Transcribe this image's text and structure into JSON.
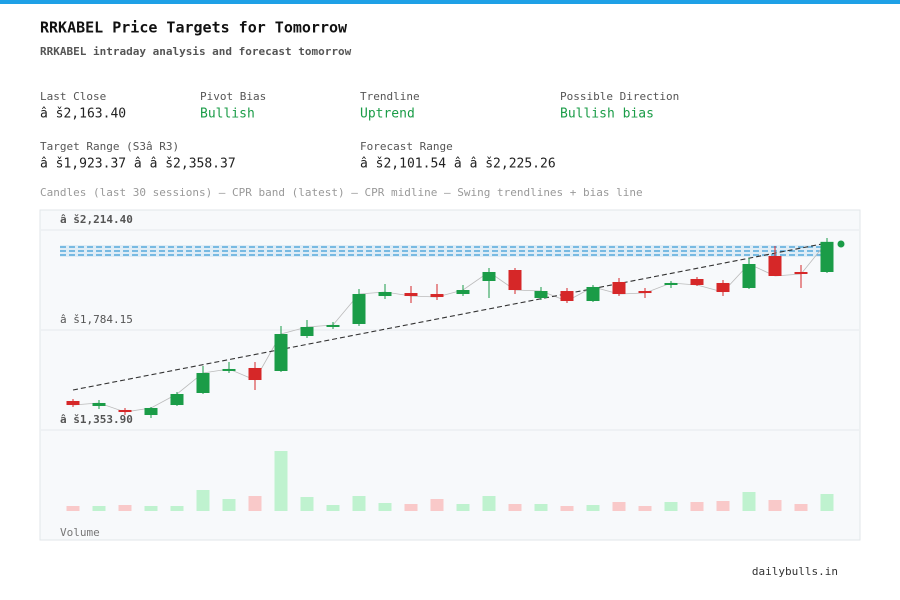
{
  "header": {
    "title": "RRKABEL Price Targets for Tomorrow",
    "subtitle": "RRKABEL intraday analysis and forecast tomorrow"
  },
  "stats": [
    {
      "label": "Last Close",
      "value": "â š2,163.40"
    },
    {
      "label": "Pivot Bias",
      "value": "Bullish"
    },
    {
      "label": "Trendline",
      "value": "Uptrend"
    },
    {
      "label": "Possible Direction",
      "value": "Bullish bias"
    },
    {
      "label": "Target Range (S3â  R3)",
      "value": "â š1,923.37 â   â š2,358.37"
    },
    {
      "label": "Forecast Range",
      "value": "â š2,101.54 â   â š2,225.26"
    }
  ],
  "chart_data": {
    "type": "candlestick",
    "caption": "Candles (last 30 sessions) – CPR band (latest) – CPR midline – Swing trendlines + bias line",
    "ylim": [
      1353.9,
      2214.4
    ],
    "yticks": [
      {
        "value": 2214.4,
        "label": "â š2,214.40"
      },
      {
        "value": 1784.15,
        "label": "â š1,784.15"
      },
      {
        "value": 1353.9,
        "label": "â š1,353.90"
      }
    ],
    "open": [
      1478.7,
      1457.2,
      1440.0,
      1418.4,
      1461.4,
      1513.1,
      1607.8,
      1620.7,
      1607.8,
      1758.3,
      1797.1,
      1810.0,
      1930.4,
      1943.3,
      1939.0,
      1939.0,
      1995.0,
      2042.3,
      1921.8,
      1951.9,
      1908.9,
      1990.7,
      1951.9,
      1977.8,
      2003.6,
      1986.4,
      1964.9,
      2102.5,
      2033.7,
      2033.7
    ],
    "close": [
      1461.4,
      1470.1,
      1431.3,
      1448.6,
      1508.8,
      1599.2,
      1616.4,
      1569.0,
      1766.9,
      1797.1,
      1805.7,
      1939.0,
      1947.6,
      1930.4,
      1926.1,
      1956.2,
      2033.7,
      1956.2,
      1951.9,
      1908.9,
      1969.2,
      1939.0,
      1943.3,
      1986.4,
      1977.8,
      1947.6,
      2068.1,
      2016.5,
      2025.1,
      2163.4
    ],
    "high": [
      1487.3,
      1483.0,
      1448.6,
      1452.9,
      1517.4,
      1629.3,
      1646.5,
      1646.5,
      1801.4,
      1827.2,
      1818.6,
      1960.6,
      1982.1,
      1973.5,
      1982.1,
      1977.8,
      2050.9,
      2050.9,
      1969.2,
      1964.9,
      1977.8,
      2007.9,
      1964.9,
      1995.0,
      2012.2,
      1999.3,
      2093.9,
      2145.6,
      2063.8,
      2180.0
    ],
    "low": [
      1452.9,
      1444.3,
      1418.4,
      1405.5,
      1457.2,
      1508.8,
      1599.2,
      1526.0,
      1603.4,
      1749.7,
      1788.5,
      1801.4,
      1917.5,
      1900.3,
      1913.2,
      1930.4,
      1921.8,
      1939.0,
      1913.2,
      1900.3,
      1904.6,
      1930.4,
      1921.8,
      1964.9,
      1973.5,
      1930.4,
      1960.6,
      2016.5,
      1964.9,
      2029.4
    ],
    "volume": [
      5,
      5,
      6,
      5,
      5,
      21,
      12,
      15,
      60,
      14,
      6,
      15,
      8,
      7,
      12,
      7,
      15,
      7,
      7,
      5,
      6,
      9,
      5,
      9,
      9,
      10,
      19,
      11,
      7,
      17
    ],
    "volume_label": "Volume",
    "up_color": "#1a9c47",
    "down_color": "#d62728",
    "up_volume_color": "#bff2cf",
    "down_volume_color": "#f9c9c9",
    "cpr": {
      "tc": 2141.3,
      "pivot": 2124.0,
      "bc": 2106.8,
      "color": "#3a9bd5"
    },
    "trendline": [
      1526.0,
      2158.5
    ],
    "bias": 2154.2,
    "bias_color": "#1a9c47",
    "grid": true
  },
  "footer": "dailybulls.in"
}
